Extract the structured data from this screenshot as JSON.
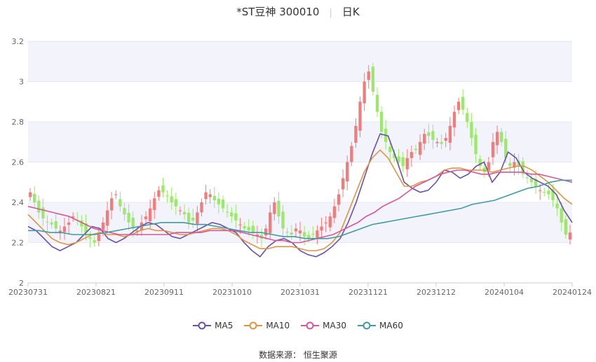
{
  "title": {
    "name": "*ST豆神 300010",
    "period": "日K"
  },
  "source_label": "数据来源：",
  "source_value": "恒生聚源",
  "colors": {
    "up": "#f47b7b",
    "down": "#9be86a",
    "MA5": "#6a4fae",
    "MA10": "#e09443",
    "MA30": "#d6579a",
    "MA60": "#3f9aa1",
    "band": "#f3f4fb",
    "grid": "#e6e8f2"
  },
  "chart_data": {
    "type": "candlestick",
    "ylim": [
      2,
      3.2
    ],
    "yticks": [
      "2",
      "2.2",
      "2.4",
      "2.6",
      "2.8",
      "3",
      "3.2"
    ],
    "xticks": [
      "20230731",
      "20230821",
      "20230911",
      "20231010",
      "20231031",
      "20231121",
      "20231212",
      "20240104",
      "20240124"
    ],
    "legend": [
      "MA5",
      "MA10",
      "MA30",
      "MA60"
    ],
    "legend_position": "bottom",
    "close_approx": [
      2.45,
      2.4,
      2.35,
      2.32,
      2.3,
      2.29,
      2.27,
      2.26,
      2.28,
      2.3,
      2.33,
      2.31,
      2.28,
      2.25,
      2.22,
      2.2,
      2.24,
      2.3,
      2.36,
      2.42,
      2.44,
      2.38,
      2.34,
      2.3,
      2.27,
      2.26,
      2.3,
      2.33,
      2.37,
      2.42,
      2.46,
      2.45,
      2.43,
      2.4,
      2.38,
      2.36,
      2.34,
      2.3,
      2.31,
      2.35,
      2.4,
      2.45,
      2.44,
      2.41,
      2.39,
      2.37,
      2.35,
      2.33,
      2.31,
      2.29,
      2.27,
      2.26,
      2.25,
      2.24,
      2.22,
      2.27,
      2.35,
      2.4,
      2.33,
      2.27,
      2.25,
      2.24,
      2.27,
      2.26,
      2.23,
      2.22,
      2.24,
      2.26,
      2.28,
      2.3,
      2.33,
      2.38,
      2.44,
      2.52,
      2.6,
      2.68,
      2.78,
      2.9,
      3.0,
      3.05,
      2.95,
      2.85,
      2.75,
      2.7,
      2.65,
      2.62,
      2.6,
      2.58,
      2.62,
      2.65,
      2.66,
      2.7,
      2.74,
      2.73,
      2.71,
      2.7,
      2.69,
      2.72,
      2.78,
      2.85,
      2.9,
      2.86,
      2.8,
      2.72,
      2.64,
      2.58,
      2.55,
      2.6,
      2.7,
      2.75,
      2.7,
      2.62,
      2.58,
      2.6,
      2.58,
      2.54,
      2.52,
      2.5,
      2.48,
      2.46,
      2.45,
      2.44,
      2.41,
      2.37,
      2.3,
      2.24,
      2.25
    ],
    "ma5": [
      2.28,
      2.26,
      2.22,
      2.18,
      2.16,
      2.18,
      2.2,
      2.24,
      2.28,
      2.27,
      2.22,
      2.2,
      2.22,
      2.25,
      2.28,
      2.3,
      2.29,
      2.26,
      2.23,
      2.22,
      2.24,
      2.26,
      2.28,
      2.3,
      2.29,
      2.27,
      2.25,
      2.2,
      2.16,
      2.13,
      2.18,
      2.21,
      2.22,
      2.2,
      2.16,
      2.14,
      2.13,
      2.15,
      2.18,
      2.22,
      2.3,
      2.4,
      2.52,
      2.64,
      2.74,
      2.73,
      2.62,
      2.5,
      2.47,
      2.45,
      2.46,
      2.5,
      2.56,
      2.55,
      2.52,
      2.54,
      2.58,
      2.6,
      2.5,
      2.55,
      2.65,
      2.62,
      2.55,
      2.52,
      2.5,
      2.48,
      2.44,
      2.36,
      2.3
    ],
    "ma10": [
      2.34,
      2.3,
      2.26,
      2.22,
      2.2,
      2.19,
      2.2,
      2.22,
      2.24,
      2.25,
      2.24,
      2.24,
      2.23,
      2.24,
      2.26,
      2.27,
      2.26,
      2.26,
      2.25,
      2.24,
      2.24,
      2.25,
      2.26,
      2.27,
      2.27,
      2.26,
      2.24,
      2.21,
      2.19,
      2.17,
      2.17,
      2.18,
      2.18,
      2.18,
      2.17,
      2.16,
      2.16,
      2.17,
      2.2,
      2.25,
      2.35,
      2.45,
      2.55,
      2.62,
      2.66,
      2.62,
      2.55,
      2.48,
      2.48,
      2.5,
      2.51,
      2.53,
      2.56,
      2.57,
      2.57,
      2.56,
      2.56,
      2.56,
      2.55,
      2.56,
      2.57,
      2.58,
      2.58,
      2.56,
      2.53,
      2.5,
      2.46,
      2.42,
      2.39
    ],
    "ma30": [
      2.38,
      2.37,
      2.36,
      2.35,
      2.34,
      2.33,
      2.31,
      2.29,
      2.27,
      2.26,
      2.25,
      2.24,
      2.24,
      2.24,
      2.24,
      2.24,
      2.24,
      2.24,
      2.25,
      2.25,
      2.25,
      2.25,
      2.26,
      2.26,
      2.26,
      2.26,
      2.25,
      2.24,
      2.23,
      2.22,
      2.21,
      2.21,
      2.2,
      2.2,
      2.21,
      2.22,
      2.23,
      2.24,
      2.26,
      2.28,
      2.3,
      2.33,
      2.35,
      2.38,
      2.4,
      2.42,
      2.45,
      2.48,
      2.5,
      2.52,
      2.54,
      2.55,
      2.56,
      2.56,
      2.55,
      2.54,
      2.54,
      2.55,
      2.55,
      2.55,
      2.55,
      2.54,
      2.54,
      2.53,
      2.52,
      2.51,
      2.5
    ],
    "ma60": [
      2.26,
      2.26,
      2.25,
      2.25,
      2.24,
      2.24,
      2.24,
      2.25,
      2.26,
      2.27,
      2.28,
      2.29,
      2.3,
      2.3,
      2.3,
      2.29,
      2.29,
      2.28,
      2.27,
      2.26,
      2.25,
      2.25,
      2.24,
      2.23,
      2.23,
      2.22,
      2.22,
      2.22,
      2.23,
      2.25,
      2.27,
      2.29,
      2.3,
      2.31,
      2.32,
      2.33,
      2.34,
      2.35,
      2.36,
      2.37,
      2.39,
      2.4,
      2.41,
      2.43,
      2.45,
      2.47,
      2.48,
      2.5,
      2.51,
      2.51
    ]
  }
}
